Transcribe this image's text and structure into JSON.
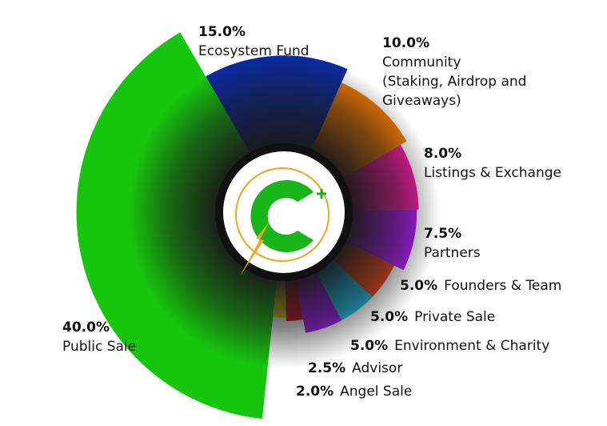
{
  "chart_data": {
    "type": "pie",
    "categories": [
      "Ecosystem Fund",
      "Community\n(Staking, Airdrop and\nGiveaways)",
      "Listings & Exchange",
      "Partners",
      "Founders & Team",
      "Private Sale",
      "Environment & Charity",
      "Advisor",
      "Angel Sale",
      "Public Sale"
    ],
    "values": [
      15,
      10,
      8,
      7.5,
      5,
      5,
      5,
      2.5,
      2,
      40
    ],
    "value_labels": [
      "15.0%",
      "10.0%",
      "8.0%",
      "7.5%",
      "5.0%",
      "5.0%",
      "5.0%",
      "2.5%",
      "2.0%",
      "40.0%"
    ],
    "colors": [
      "#0b2a9e",
      "#f57a00",
      "#ff1aa8",
      "#b51aff",
      "#ff4a1a",
      "#1ad0ff",
      "#a51aff",
      "#e01020",
      "#f0e010",
      "#16c60c"
    ]
  }
}
